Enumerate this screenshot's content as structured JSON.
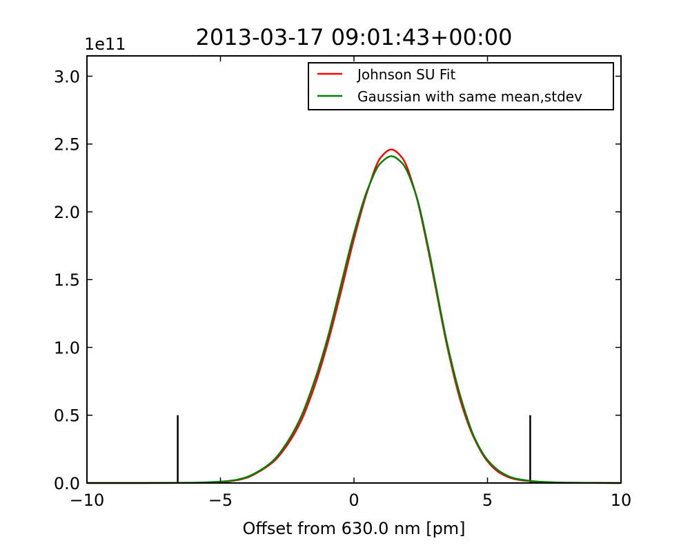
{
  "chart_data": {
    "type": "line",
    "title": "2013-03-17 09:01:43+00:00",
    "xlabel": "Offset from 630.0 nm [pm]",
    "ylabel": "",
    "y_multiplier_label": "1e11",
    "xlim": [
      -10,
      10
    ],
    "ylim": [
      0,
      3.15
    ],
    "y_unit_scale": 100000000000.0,
    "x_ticks": [
      -10,
      -5,
      0,
      5,
      10
    ],
    "x_tick_labels": [
      "−10",
      "−5",
      "0",
      "5",
      "10"
    ],
    "y_ticks": [
      0.0,
      0.5,
      1.0,
      1.5,
      2.0,
      2.5,
      3.0
    ],
    "y_tick_labels": [
      "0.0",
      "0.5",
      "1.0",
      "1.5",
      "2.0",
      "2.5",
      "3.0"
    ],
    "grid": false,
    "legend_position": "top-right",
    "series": [
      {
        "name": "Johnson SU Fit",
        "color": "#ff0000",
        "x": [
          -10,
          -8,
          -6,
          -5,
          -4.5,
          -4,
          -3.5,
          -3,
          -2.5,
          -2,
          -1.5,
          -1,
          -0.5,
          0,
          0.5,
          1,
          1.4,
          1.8,
          2.3,
          2.8,
          3,
          3.5,
          4,
          4.5,
          5,
          5.5,
          6,
          6.5,
          7,
          8,
          10
        ],
        "y": [
          0,
          0,
          0.001,
          0.007,
          0.017,
          0.04,
          0.09,
          0.16,
          0.28,
          0.45,
          0.7,
          1.02,
          1.4,
          1.8,
          2.15,
          2.4,
          2.46,
          2.4,
          2.14,
          1.7,
          1.5,
          1.0,
          0.6,
          0.33,
          0.16,
          0.07,
          0.03,
          0.015,
          0.007,
          0.002,
          0
        ]
      },
      {
        "name": "Gaussian with same mean,stdev",
        "color": "#008000",
        "x": [
          -10,
          -8,
          -6,
          -5,
          -4.5,
          -4,
          -3.5,
          -3,
          -2.5,
          -2,
          -1.5,
          -1,
          -0.5,
          0,
          0.5,
          1,
          1.4,
          1.8,
          2.3,
          2.8,
          3,
          3.5,
          4,
          4.5,
          5,
          5.5,
          6,
          6.5,
          7,
          8,
          10
        ],
        "y": [
          0,
          0,
          0.002,
          0.01,
          0.02,
          0.045,
          0.095,
          0.17,
          0.3,
          0.48,
          0.74,
          1.06,
          1.45,
          1.84,
          2.16,
          2.36,
          2.41,
          2.36,
          2.14,
          1.72,
          1.52,
          1.02,
          0.63,
          0.34,
          0.17,
          0.08,
          0.035,
          0.018,
          0.009,
          0.002,
          0
        ]
      }
    ],
    "markers": [
      {
        "x": -6.6,
        "y": 0.5,
        "color": "#000000"
      },
      {
        "x": 6.6,
        "y": 0.5,
        "color": "#000000"
      }
    ]
  }
}
